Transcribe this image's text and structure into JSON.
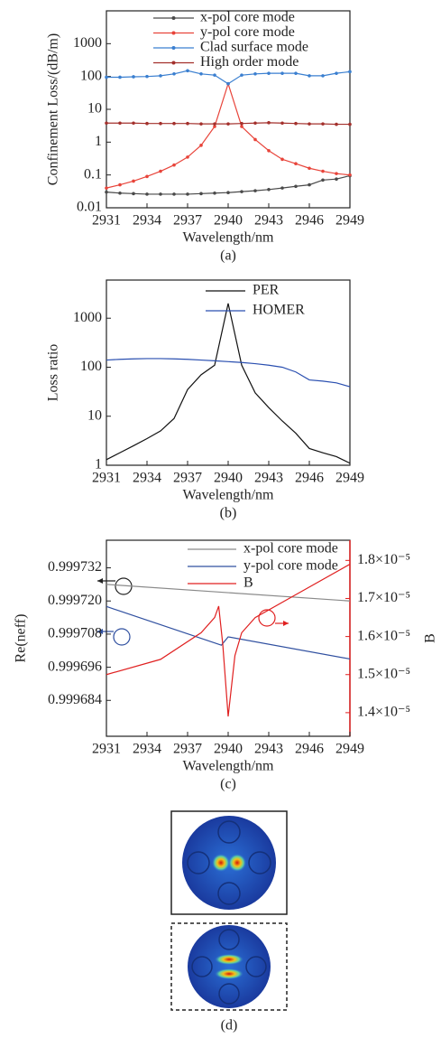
{
  "chart_data": [
    {
      "type": "line",
      "caption": "(a)",
      "xlabel": "Wavelength/nm",
      "ylabel": "Confinement Loss/(dB/m)",
      "log_y": true,
      "markers": true,
      "grid": false,
      "xlim": [
        2931,
        2949
      ],
      "xticks": [
        2931,
        2934,
        2937,
        2940,
        2943,
        2946,
        2949
      ],
      "ylim": [
        0.01,
        10000
      ],
      "yticks": [
        0.01,
        0.1,
        1,
        10,
        100,
        1000
      ],
      "x": [
        2931,
        2932,
        2933,
        2934,
        2935,
        2936,
        2937,
        2938,
        2939,
        2940,
        2941,
        2942,
        2943,
        2944,
        2945,
        2946,
        2947,
        2948,
        2949
      ],
      "series": [
        {
          "name": "x-pol core mode",
          "color": "#4a4a4a",
          "values": [
            0.03,
            0.028,
            0.027,
            0.026,
            0.026,
            0.026,
            0.026,
            0.027,
            0.028,
            0.029,
            0.031,
            0.033,
            0.036,
            0.04,
            0.045,
            0.05,
            0.07,
            0.075,
            0.095
          ]
        },
        {
          "name": "y-pol core mode",
          "color": "#e8443a",
          "values": [
            0.04,
            0.05,
            0.065,
            0.09,
            0.13,
            0.2,
            0.35,
            0.8,
            3,
            60,
            3,
            1.2,
            0.55,
            0.3,
            0.22,
            0.16,
            0.13,
            0.11,
            0.1
          ]
        },
        {
          "name": "Clad surface mode",
          "color": "#3a7fd0",
          "values": [
            95,
            95,
            98,
            100,
            105,
            120,
            150,
            120,
            110,
            60,
            110,
            120,
            125,
            125,
            125,
            105,
            105,
            125,
            140
          ]
        },
        {
          "name": "High order mode",
          "color": "#a3302c",
          "values": [
            3.8,
            3.8,
            3.8,
            3.7,
            3.7,
            3.7,
            3.7,
            3.6,
            3.6,
            3.6,
            3.7,
            3.8,
            3.9,
            3.8,
            3.7,
            3.6,
            3.6,
            3.5,
            3.5
          ]
        }
      ]
    },
    {
      "type": "line",
      "caption": "(b)",
      "xlabel": "Wavelength/nm",
      "ylabel": "Loss ratio",
      "log_y": true,
      "markers": false,
      "grid": false,
      "xlim": [
        2931,
        2949
      ],
      "xticks": [
        2931,
        2934,
        2937,
        2940,
        2943,
        2946,
        2949
      ],
      "ylim": [
        1,
        6000
      ],
      "yticks": [
        1,
        10,
        100,
        1000
      ],
      "x": [
        2931,
        2932,
        2933,
        2934,
        2935,
        2936,
        2937,
        2938,
        2939,
        2940,
        2941,
        2942,
        2943,
        2944,
        2945,
        2946,
        2947,
        2948,
        2949
      ],
      "series": [
        {
          "name": "PER",
          "color": "#111111",
          "values": [
            1.3,
            1.8,
            2.5,
            3.5,
            5,
            9,
            35,
            70,
            110,
            2000,
            110,
            30,
            15,
            8,
            4.5,
            2.2,
            1.8,
            1.5,
            1.1
          ]
        },
        {
          "name": "HOMER",
          "color": "#2a4fb0",
          "values": [
            140,
            145,
            148,
            150,
            150,
            148,
            145,
            140,
            135,
            130,
            125,
            118,
            110,
            100,
            80,
            55,
            52,
            48,
            40
          ]
        }
      ]
    },
    {
      "type": "line",
      "caption": "(c)",
      "xlabel": "Wavelength/nm",
      "ylabel": "Re(neff)",
      "y2label": "B",
      "log_y": false,
      "markers": false,
      "grid": false,
      "xlim": [
        2931,
        2949
      ],
      "xticks": [
        2931,
        2934,
        2937,
        2940,
        2943,
        2946,
        2949
      ],
      "ylim": [
        0.999671,
        0.999742
      ],
      "yticks": [
        0.999684,
        0.999696,
        0.999708,
        {
          "value": 0.99972,
          "label": "0.999720"
        },
        0.999732
      ],
      "y2lim": [
        1.338e-05,
        1.853e-05
      ],
      "y2ticks": [
        {
          "value": 1.4e-05,
          "label": "1.4×10⁻⁵"
        },
        {
          "value": 1.5e-05,
          "label": "1.5×10⁻⁵"
        },
        {
          "value": 1.6e-05,
          "label": "1.6×10⁻⁵"
        },
        {
          "value": 1.7e-05,
          "label": "1.7×10⁻⁵"
        },
        {
          "value": 1.8e-05,
          "label": "1.8×10⁻⁵"
        }
      ],
      "y2color": "#e02020",
      "series": [
        {
          "name": "x-pol core mode",
          "color": "#8a8a8a",
          "x": [
            2931,
            2949
          ],
          "values": [
            0.999726,
            0.99972
          ]
        },
        {
          "name": "y-pol core mode",
          "color": "#3050a0",
          "x": [
            2931,
            2939.5,
            2940,
            2949
          ],
          "values": [
            0.999718,
            0.999704,
            0.999707,
            0.999699
          ]
        },
        {
          "name": "B",
          "color": "#e02020",
          "axis": "y2",
          "x": [
            2931,
            2935,
            2938,
            2939,
            2939.3,
            2939.6,
            2940,
            2940.5,
            2941,
            2942,
            2945,
            2949
          ],
          "values": [
            1.5e-05,
            1.54e-05,
            1.61e-05,
            1.65e-05,
            1.68e-05,
            1.58e-05,
            1.39e-05,
            1.55e-05,
            1.61e-05,
            1.65e-05,
            1.71e-05,
            1.79e-05
          ]
        }
      ]
    }
  ],
  "panel_d": {
    "caption": "(d)"
  }
}
